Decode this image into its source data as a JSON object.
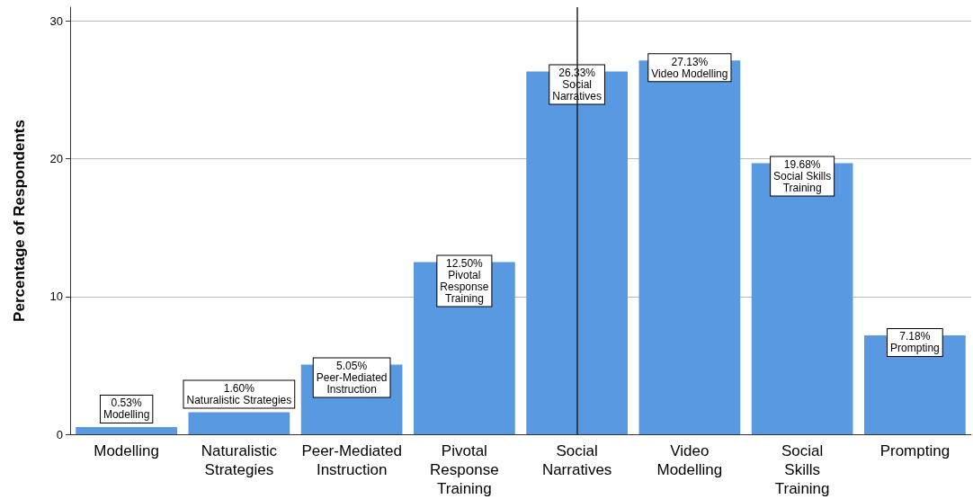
{
  "chart_data": {
    "type": "bar",
    "ylabel": "Percentage of Respondents",
    "categories": [
      "Modelling",
      "Naturalistic Strategies",
      "Peer-Mediated Instruction",
      "Pivotal Response Training",
      "Social Narratives",
      "Video Modelling",
      "Social Skills Training",
      "Prompting"
    ],
    "values": [
      0.53,
      1.6,
      5.05,
      12.5,
      26.33,
      27.13,
      19.68,
      7.18
    ],
    "value_labels": [
      "0.53%\nModelling",
      "1.60%\nNaturalistic Strategies",
      "5.05%\nPeer-Mediated\nInstruction",
      "12.50%\nPivotal\nResponse\nTraining",
      "26.33%\nSocial\nNarratives",
      "27.13%\nVideo Modelling",
      "19.68%\nSocial Skills\nTraining",
      "7.18%\nPrompting"
    ],
    "color": "#5899e2",
    "ylim": [
      0,
      31
    ],
    "yticks": [
      0,
      10,
      20,
      30
    ],
    "grid": "y",
    "ref_lines": [
      {
        "axis": "x",
        "value": "Social Narratives",
        "color": "#222222"
      }
    ]
  }
}
